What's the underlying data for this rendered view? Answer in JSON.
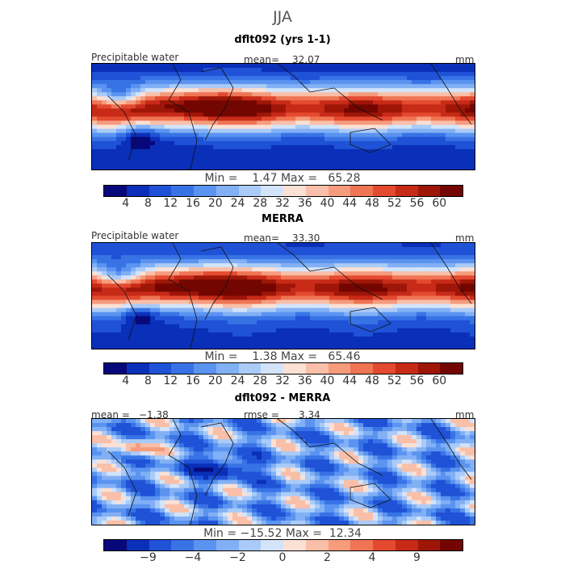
{
  "figure_title": "JJA",
  "chart_data": [
    {
      "type": "heatmap",
      "title": "dflt092 (yrs 1-1)",
      "variable": "Precipitable water",
      "units": "mm",
      "mean_label": "mean=",
      "mean": "32.07",
      "min_label": "Min =",
      "min": "1.47",
      "max_label": "Max =",
      "max": "65.28",
      "colorbar_ticks": [
        "4",
        "8",
        "12",
        "16",
        "20",
        "24",
        "28",
        "32",
        "36",
        "40",
        "44",
        "48",
        "52",
        "56",
        "60"
      ],
      "colorbar_colors": [
        "#08087a",
        "#0a2fb8",
        "#1f52d6",
        "#3873e6",
        "#5a93f0",
        "#82b0f5",
        "#aacbf8",
        "#d3e4fa",
        "#fbe0d4",
        "#f9bfa8",
        "#f59c7d",
        "#ef7555",
        "#e34a30",
        "#c82a18",
        "#9e1608",
        "#730600"
      ],
      "x_range": [
        0,
        360
      ],
      "y_range": [
        -60,
        60
      ]
    },
    {
      "type": "heatmap",
      "title": "MERRA",
      "variable": "Precipitable water",
      "units": "mm",
      "mean_label": "mean=",
      "mean": "33.30",
      "min_label": "Min =",
      "min": "1.38",
      "max_label": "Max =",
      "max": "65.46",
      "colorbar_ticks": [
        "4",
        "8",
        "12",
        "16",
        "20",
        "24",
        "28",
        "32",
        "36",
        "40",
        "44",
        "48",
        "52",
        "56",
        "60"
      ],
      "colorbar_colors": [
        "#08087a",
        "#0a2fb8",
        "#1f52d6",
        "#3873e6",
        "#5a93f0",
        "#82b0f5",
        "#aacbf8",
        "#d3e4fa",
        "#fbe0d4",
        "#f9bfa8",
        "#f59c7d",
        "#ef7555",
        "#e34a30",
        "#c82a18",
        "#9e1608",
        "#730600"
      ],
      "x_range": [
        0,
        360
      ],
      "y_range": [
        -60,
        60
      ]
    },
    {
      "type": "heatmap",
      "title": "dflt092 - MERRA",
      "units": "mm",
      "mean_label": "mean =",
      "mean": "−1.38",
      "rmse_label": "rmse =",
      "rmse": "3.34",
      "min_label": "Min =",
      "min": "−15.52",
      "max_label": "Max =",
      "max": "12.34",
      "colorbar_ticks": [
        "−9",
        "−4",
        "−2",
        "0",
        "2",
        "4",
        "9"
      ],
      "colorbar_colors": [
        "#08087a",
        "#0a2fb8",
        "#1f52d6",
        "#3873e6",
        "#5a93f0",
        "#82b0f5",
        "#aacbf8",
        "#d3e4fa",
        "#fbe0d4",
        "#f9bfa8",
        "#f59c7d",
        "#ef7555",
        "#e34a30",
        "#c82a18",
        "#9e1608",
        "#730600"
      ],
      "x_range": [
        0,
        360
      ],
      "y_range": [
        -60,
        60
      ]
    }
  ]
}
